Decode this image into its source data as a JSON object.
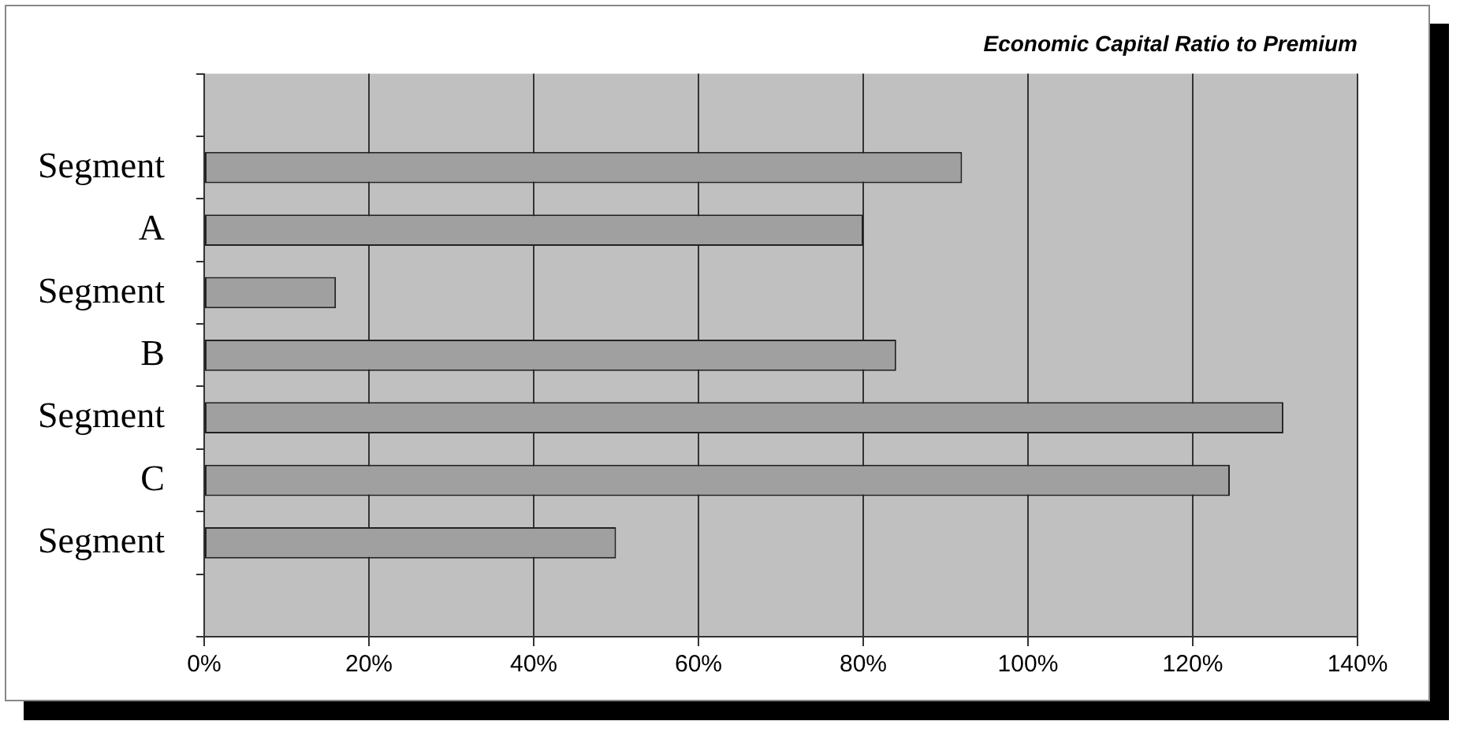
{
  "chart_data": {
    "type": "bar",
    "orientation": "horizontal",
    "title": "Economic Capital Ratio to Premium",
    "categories": [
      null,
      "Segment",
      "A",
      "Segment",
      "B",
      "Segment",
      "C",
      "Segment",
      null
    ],
    "values": [
      null,
      92,
      80,
      16,
      84,
      131,
      124.5,
      50,
      null
    ],
    "color": "#a0a0a0",
    "xlim": [
      0,
      140
    ],
    "xticks": [
      {
        "value": 0,
        "label": "0%"
      },
      {
        "value": 20,
        "label": "20%"
      },
      {
        "value": 40,
        "label": "40%"
      },
      {
        "value": 60,
        "label": "60%"
      },
      {
        "value": 80,
        "label": "80%"
      },
      {
        "value": 100,
        "label": "100%"
      },
      {
        "value": 120,
        "label": "120%"
      },
      {
        "value": 140,
        "label": "140%"
      }
    ],
    "grid": "x",
    "legend": false
  }
}
